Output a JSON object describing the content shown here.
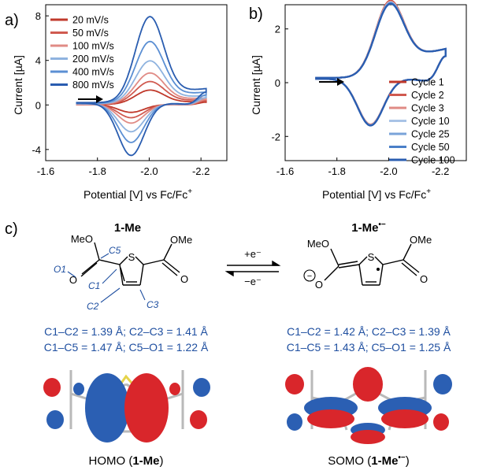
{
  "chart_data": [
    {
      "type": "line",
      "panel_label": "a)",
      "xlabel": "Potential [V] vs Fc/Fc",
      "xlabel_sup": "+",
      "ylabel": "Current [µA]",
      "xlim": [
        -1.6,
        -2.3
      ],
      "ylim": [
        -5,
        9
      ],
      "xticks": [
        -1.6,
        -1.8,
        -2.0,
        -2.2
      ],
      "xtick_labels": [
        "-1.6",
        "-1.8",
        "-2.0",
        "-2.2"
      ],
      "yticks": [
        -4,
        0,
        4,
        8
      ],
      "ytick_labels": [
        "-4",
        "0",
        "4",
        "8"
      ],
      "legend_position": "top-left",
      "grid": false,
      "scan_arrow": "right",
      "model": {
        "e0": -1.97,
        "x_start": -1.72,
        "x_end": -2.22
      },
      "series": [
        {
          "name": "20 mV/s",
          "color": "#c0392b",
          "peak_cathodic": 1.2,
          "peak_anodic": -0.7,
          "baseline": 0.3
        },
        {
          "name": "50 mV/s",
          "color": "#d05a50",
          "peak_cathodic": 1.9,
          "peak_anodic": -1.2,
          "baseline": 0.45
        },
        {
          "name": "100 mV/s",
          "color": "#e08b85",
          "peak_cathodic": 2.6,
          "peak_anodic": -1.7,
          "baseline": 0.6
        },
        {
          "name": "200 mV/s",
          "color": "#8fb3df",
          "peak_cathodic": 3.6,
          "peak_anodic": -2.5,
          "baseline": 0.8
        },
        {
          "name": "400 mV/s",
          "color": "#5b8fd3",
          "peak_cathodic": 5.2,
          "peak_anodic": -3.5,
          "baseline": 1.1
        },
        {
          "name": "800 mV/s",
          "color": "#2a5db0",
          "peak_cathodic": 7.3,
          "peak_anodic": -4.7,
          "baseline": 1.4
        }
      ]
    },
    {
      "type": "line",
      "panel_label": "b)",
      "xlabel": "Potential [V] vs Fc/Fc",
      "xlabel_sup": "+",
      "ylabel": "Current [µA]",
      "xlim": [
        -1.6,
        -2.3
      ],
      "ylim": [
        -2.9,
        2.9
      ],
      "xticks": [
        -1.6,
        -1.8,
        -2.0,
        -2.2
      ],
      "xtick_labels": [
        "-1.6",
        "-1.8",
        "-2.0",
        "-2.2"
      ],
      "yticks": [
        -2,
        0,
        2
      ],
      "ytick_labels": [
        "-2",
        "0",
        "2"
      ],
      "legend_position": "bottom-right",
      "grid": false,
      "scan_arrow": "right",
      "model": {
        "e0": -1.97,
        "x_start": -1.72,
        "x_end": -2.22,
        "peak_cathodic": 2.5,
        "peak_anodic": -1.7,
        "baseline": 1.2
      },
      "series": [
        {
          "name": "Cycle 1",
          "color": "#c0392b"
        },
        {
          "name": "Cycle 2",
          "color": "#d05a50"
        },
        {
          "name": "Cycle 3",
          "color": "#e08b85"
        },
        {
          "name": "Cycle 10",
          "color": "#a9c3e6"
        },
        {
          "name": "Cycle 25",
          "color": "#7aa3d9"
        },
        {
          "name": "Cycle 50",
          "color": "#4a7fc8"
        },
        {
          "name": "Cycle 100",
          "color": "#2a5db0"
        }
      ]
    }
  ],
  "panel_c": {
    "label": "c)",
    "left_title": "1-Me",
    "right_title": "1-Me",
    "right_title_sup": "•−",
    "reaction_top": "+e⁻",
    "reaction_bottom": "−e⁻",
    "left_atoms": {
      "meo": "MeO",
      "ome": "OMe",
      "s": "S",
      "o1": "O1",
      "c5": "C5",
      "c1": "C1",
      "c2": "C2",
      "c3": "C3"
    },
    "right_atoms": {
      "meo": "MeO",
      "ome": "OMe",
      "s": "S",
      "minus": "−",
      "o": "O"
    },
    "left_bonds_line1": "C1–C2 = 1.39 Å; C2–C3 = 1.41 Å",
    "left_bonds_line2": "C1–C5 = 1.47 Å; C5–O1 = 1.22 Å",
    "right_bonds_line1": "C1–C2 = 1.42 Å; C2–C3 = 1.39 Å",
    "right_bonds_line2": "C1–C5 = 1.43 Å; C5–O1 = 1.25 Å",
    "left_orbital_prefix": "HOMO (",
    "left_orbital_bold": "1-Me",
    "left_orbital_suffix": ")",
    "right_orbital_prefix": "SOMO (",
    "right_orbital_bold": "1-Me",
    "right_orbital_sup": "•−",
    "right_orbital_suffix": ")",
    "colors": {
      "orbital_red": "#d9262b",
      "orbital_blue": "#2b5fb3",
      "label_blue": "#1f4fa0"
    }
  }
}
